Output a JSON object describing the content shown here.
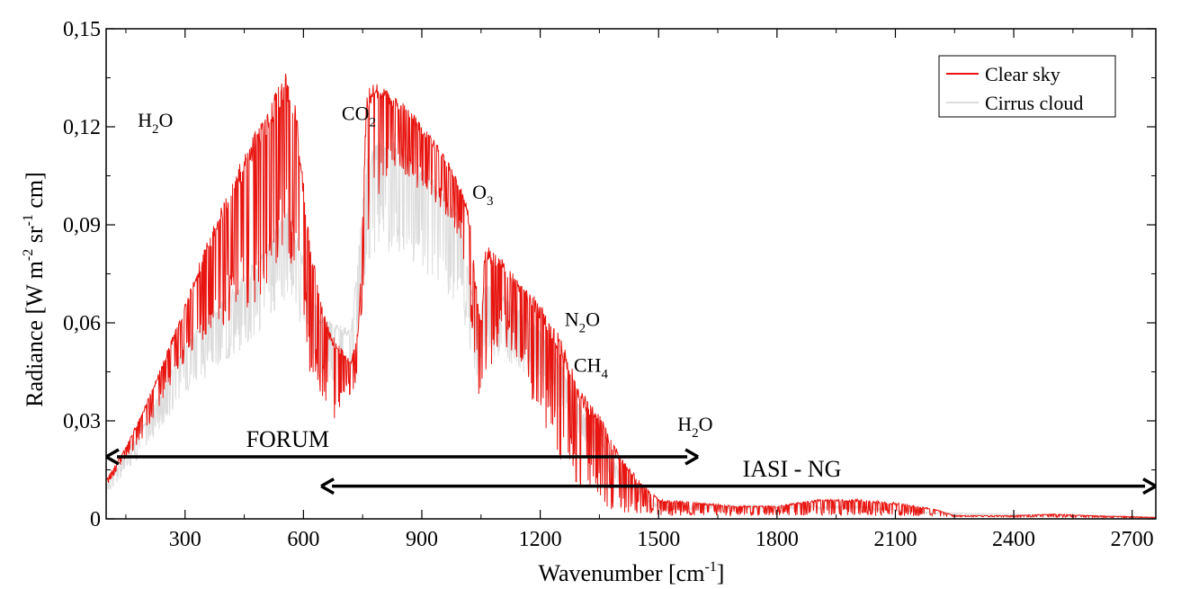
{
  "chart_data": {
    "type": "line",
    "xlabel": "Wavenumber [cm",
    "xlabel_sup": "-1",
    "xlabel_end": "]",
    "ylabel": "Radiance [W m",
    "ylabel_sup1": "-2",
    "ylabel_mid": " sr",
    "ylabel_sup2": "-1",
    "ylabel_end": " cm]",
    "xlim": [
      100,
      2760
    ],
    "ylim": [
      0,
      0.15
    ],
    "xticks": [
      300,
      600,
      900,
      1200,
      1500,
      1800,
      2100,
      2400,
      2700
    ],
    "xtick_labels": [
      "300",
      "600",
      "900",
      "1200",
      "1500",
      "1800",
      "2100",
      "2400",
      "2700"
    ],
    "yticks": [
      0,
      0.03,
      0.06,
      0.09,
      0.12,
      0.15
    ],
    "ytick_labels": [
      "0",
      "0,03",
      "0,06",
      "0,09",
      "0,12",
      "0,15"
    ],
    "legend_position": "top-right",
    "series": [
      {
        "name": "Clear sky",
        "color": "#e8140f",
        "envelope": [
          [
            100,
            0.012
          ],
          [
            150,
            0.022
          ],
          [
            200,
            0.035
          ],
          [
            250,
            0.05
          ],
          [
            300,
            0.066
          ],
          [
            350,
            0.083
          ],
          [
            400,
            0.098
          ],
          [
            450,
            0.112
          ],
          [
            500,
            0.124
          ],
          [
            530,
            0.132
          ],
          [
            555,
            0.137
          ],
          [
            580,
            0.128
          ],
          [
            600,
            0.104
          ],
          [
            620,
            0.084
          ],
          [
            640,
            0.068
          ],
          [
            660,
            0.06
          ],
          [
            680,
            0.055
          ],
          [
            700,
            0.052
          ],
          [
            720,
            0.048
          ],
          [
            740,
            0.06
          ],
          [
            760,
            0.13
          ],
          [
            780,
            0.136
          ],
          [
            800,
            0.132
          ],
          [
            850,
            0.128
          ],
          [
            900,
            0.121
          ],
          [
            950,
            0.113
          ],
          [
            1000,
            0.102
          ],
          [
            1020,
            0.094
          ],
          [
            1040,
            0.07
          ],
          [
            1050,
            0.06
          ],
          [
            1060,
            0.084
          ],
          [
            1080,
            0.082
          ],
          [
            1100,
            0.08
          ],
          [
            1150,
            0.073
          ],
          [
            1200,
            0.066
          ],
          [
            1250,
            0.056
          ],
          [
            1300,
            0.04
          ],
          [
            1350,
            0.032
          ],
          [
            1400,
            0.02
          ],
          [
            1450,
            0.012
          ],
          [
            1500,
            0.006
          ],
          [
            1600,
            0.005
          ],
          [
            1700,
            0.004
          ],
          [
            1800,
            0.004
          ],
          [
            1900,
            0.006
          ],
          [
            2000,
            0.006
          ],
          [
            2100,
            0.005
          ],
          [
            2200,
            0.003
          ],
          [
            2250,
            0.001
          ],
          [
            2400,
            0.001
          ],
          [
            2500,
            0.0015
          ],
          [
            2600,
            0.001
          ],
          [
            2760,
            0.0005
          ]
        ],
        "minima": [
          [
            100,
            0.01
          ],
          [
            150,
            0.018
          ],
          [
            200,
            0.026
          ],
          [
            250,
            0.038
          ],
          [
            300,
            0.048
          ],
          [
            350,
            0.055
          ],
          [
            400,
            0.058
          ],
          [
            450,
            0.062
          ],
          [
            500,
            0.07
          ],
          [
            550,
            0.08
          ],
          [
            580,
            0.075
          ],
          [
            600,
            0.06
          ],
          [
            620,
            0.04
          ],
          [
            640,
            0.038
          ],
          [
            660,
            0.033
          ],
          [
            680,
            0.03
          ],
          [
            700,
            0.036
          ],
          [
            720,
            0.038
          ],
          [
            740,
            0.04
          ],
          [
            760,
            0.085
          ],
          [
            800,
            0.1
          ],
          [
            850,
            0.105
          ],
          [
            900,
            0.1
          ],
          [
            950,
            0.095
          ],
          [
            1000,
            0.085
          ],
          [
            1050,
            0.032
          ],
          [
            1100,
            0.055
          ],
          [
            1150,
            0.045
          ],
          [
            1200,
            0.03
          ],
          [
            1250,
            0.018
          ],
          [
            1300,
            0.008
          ],
          [
            1350,
            0.004
          ],
          [
            1400,
            0.002
          ],
          [
            1500,
            0.001
          ],
          [
            2000,
            0.001
          ],
          [
            2400,
            0.0005
          ],
          [
            2760,
            0.0003
          ]
        ]
      },
      {
        "name": "Cirrus cloud",
        "color": "#dcdcdc",
        "envelope": [
          [
            100,
            0.01
          ],
          [
            200,
            0.03
          ],
          [
            300,
            0.054
          ],
          [
            400,
            0.068
          ],
          [
            500,
            0.082
          ],
          [
            560,
            0.096
          ],
          [
            600,
            0.08
          ],
          [
            640,
            0.062
          ],
          [
            680,
            0.06
          ],
          [
            720,
            0.058
          ],
          [
            760,
            0.11
          ],
          [
            800,
            0.118
          ],
          [
            850,
            0.114
          ],
          [
            900,
            0.108
          ],
          [
            950,
            0.101
          ],
          [
            1000,
            0.092
          ],
          [
            1040,
            0.06
          ],
          [
            1060,
            0.072
          ],
          [
            1100,
            0.07
          ],
          [
            1200,
            0.058
          ],
          [
            1250,
            0.048
          ],
          [
            1300,
            0.035
          ],
          [
            1400,
            0.015
          ],
          [
            1500,
            0.004
          ],
          [
            2000,
            0.004
          ],
          [
            2200,
            0.002
          ],
          [
            2760,
            0.0004
          ]
        ]
      }
    ],
    "annotations": [
      {
        "text": "H",
        "sub": "2",
        "tail": "O",
        "x": 180,
        "y": 0.12
      },
      {
        "text": "CO",
        "sub": "2",
        "tail": "",
        "x": 697,
        "y": 0.122
      },
      {
        "text": "O",
        "sub": "3",
        "tail": "",
        "x": 1028,
        "y": 0.098
      },
      {
        "text": "N",
        "sub": "2",
        "tail": "O",
        "x": 1262,
        "y": 0.059
      },
      {
        "text": "CH",
        "sub": "4",
        "tail": "",
        "x": 1285,
        "y": 0.045
      },
      {
        "text": "H",
        "sub": "2",
        "tail": "O",
        "x": 1548,
        "y": 0.027
      }
    ],
    "ranges": [
      {
        "label": "FORUM",
        "x0": 100,
        "x1": 1600,
        "y": 0.019,
        "label_x": 560,
        "label_y": 0.022
      },
      {
        "label": "IASI - NG",
        "x0": 645,
        "x1": 2760,
        "y": 0.01,
        "label_x": 1838,
        "label_y": 0.013
      }
    ]
  }
}
